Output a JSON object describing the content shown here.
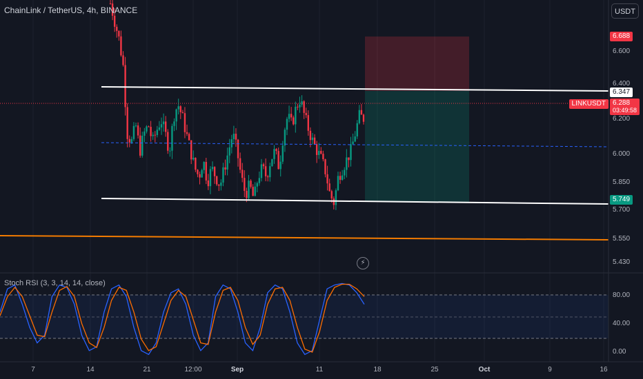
{
  "header": {
    "symbol_title": "ChainLink / TetherUS, 4h, BINANCE",
    "currency_button": "USDT"
  },
  "indicator": {
    "title": "Stoch RSI (3, 3, 14, 14, close)"
  },
  "price_axis": {
    "labels": [
      "6.600",
      "6.400",
      "6.200",
      "6.000",
      "5.850",
      "5.700",
      "5.550",
      "5.430"
    ],
    "badges": {
      "target": "6.688",
      "resistance": "6.347",
      "last_price": "6.288",
      "countdown": "03:49:58",
      "support": "5.749",
      "symbol": "LINKUSDT"
    }
  },
  "stoch_axis": {
    "labels": [
      "80.00",
      "40.00",
      "0.00"
    ]
  },
  "time_axis": {
    "labels": [
      "7",
      "14",
      "21",
      "12:00",
      "Sep",
      "11",
      "18",
      "25",
      "Oct",
      "9",
      "16"
    ]
  },
  "colors": {
    "background": "#131722",
    "up": "#089981",
    "down": "#f23645",
    "k_line": "#2962ff",
    "d_line": "#ff6d00",
    "trend_line": "#ffffff",
    "orange_line": "#f57c00"
  },
  "chart_data": {
    "type": "candlestick",
    "price_levels": {
      "upper_channel": 6.347,
      "lower_channel": 5.749,
      "mid_dashed": 6.07,
      "target": 6.688,
      "last": 6.288,
      "long_term_line": 5.56
    },
    "candles_close_path": [
      6.95,
      6.85,
      6.75,
      6.6,
      6.2,
      6.15,
      6.25,
      6.1,
      6.2,
      6.25,
      6.15,
      6.22,
      6.28,
      6.2,
      6.1,
      6.3,
      6.37,
      6.3,
      6.2,
      6.1,
      6.0,
      5.95,
      6.05,
      5.92,
      6.0,
      5.95,
      5.9,
      6.0,
      6.1,
      6.2,
      6.1,
      5.95,
      5.85,
      5.9,
      5.82,
      5.95,
      6.0,
      5.95,
      6.05,
      6.1,
      6.0,
      6.2,
      6.3,
      6.25,
      6.35,
      6.4,
      6.3,
      6.22,
      6.15,
      6.1,
      6.05,
      5.98,
      5.85,
      5.8,
      5.95,
      6.0,
      6.05,
      6.1,
      6.2,
      6.3,
      6.288
    ],
    "stoch_rsi_k": [
      60,
      90,
      95,
      70,
      40,
      20,
      30,
      80,
      95,
      92,
      70,
      30,
      10,
      15,
      60,
      90,
      95,
      80,
      40,
      10,
      5,
      20,
      60,
      85,
      90,
      70,
      30,
      10,
      20,
      80,
      95,
      90,
      60,
      20,
      10,
      40,
      85,
      95,
      90,
      60,
      20,
      5,
      10,
      50,
      90,
      95,
      97,
      95,
      85,
      70
    ],
    "stoch_rsi_d": [
      55,
      80,
      92,
      80,
      55,
      30,
      28,
      60,
      88,
      93,
      80,
      45,
      20,
      14,
      40,
      75,
      92,
      88,
      60,
      25,
      10,
      15,
      45,
      75,
      88,
      80,
      50,
      20,
      18,
      60,
      88,
      92,
      75,
      40,
      18,
      30,
      70,
      90,
      92,
      75,
      40,
      12,
      8,
      35,
      75,
      92,
      96,
      96,
      90,
      80
    ],
    "stoch_levels": [
      80,
      50,
      20
    ],
    "yrange_price": [
      5.4,
      6.97
    ],
    "yrange_stoch": [
      0,
      100
    ]
  }
}
